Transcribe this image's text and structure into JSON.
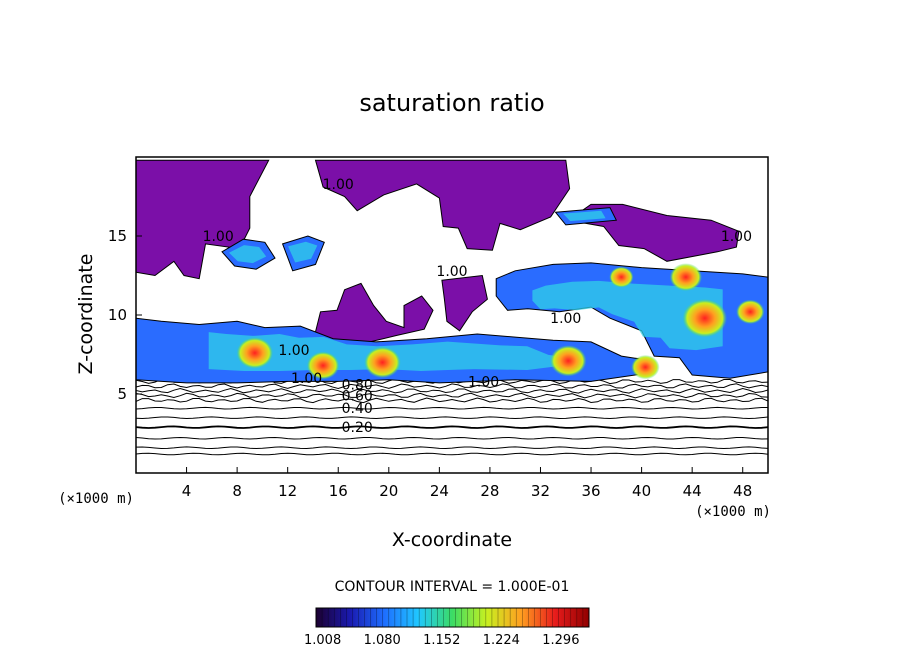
{
  "chart_data": {
    "type": "heatmap",
    "title": "saturation ratio",
    "xlabel": "X-coordinate",
    "ylabel": "Z-coordinate",
    "x_unit": "(×1000 m)",
    "z_unit": "(×1000 m)",
    "xlim": [
      0,
      50
    ],
    "ylim": [
      0,
      20
    ],
    "x_ticks": [
      4,
      8,
      12,
      16,
      20,
      24,
      28,
      32,
      36,
      40,
      44,
      48
    ],
    "y_ticks": [
      5,
      10,
      15
    ],
    "contour_interval_text": "CONTOUR INTERVAL = 1.000E-01",
    "contour_levels": [
      0.1,
      0.2,
      0.3,
      0.4,
      0.5,
      0.6,
      0.7,
      0.8,
      0.9,
      1.0
    ],
    "contour_labels": [
      {
        "text": "0.20",
        "x": 17.5,
        "z": 2.9
      },
      {
        "text": "0.40",
        "x": 17.5,
        "z": 4.1
      },
      {
        "text": "0.60",
        "x": 17.5,
        "z": 4.9
      },
      {
        "text": "0.80",
        "x": 17.5,
        "z": 5.6
      },
      {
        "text": "1.00",
        "x": 13.5,
        "z": 6.0
      },
      {
        "text": "1.00",
        "x": 27.5,
        "z": 5.8
      },
      {
        "text": "1.00",
        "x": 12.5,
        "z": 7.8
      },
      {
        "text": "1.00",
        "x": 25.0,
        "z": 12.8
      },
      {
        "text": "1.00",
        "x": 34.0,
        "z": 9.8
      },
      {
        "text": "1.00",
        "x": 16.0,
        "z": 18.3
      },
      {
        "text": "1.00",
        "x": 6.5,
        "z": 15.0
      },
      {
        "text": "1.00",
        "x": 47.5,
        "z": 15.0
      }
    ],
    "colorbar": {
      "min": 1.0,
      "max": 1.33,
      "labels": [
        "1.008",
        "1.080",
        "1.152",
        "1.224",
        "1.296"
      ],
      "colors": [
        "#1c0030",
        "#1a1ab0",
        "#1e6eff",
        "#20c8ff",
        "#3cdc64",
        "#c8f020",
        "#ffa020",
        "#e81c1c",
        "#900000"
      ]
    },
    "fill_below_one_color": "#ffffff",
    "fill_near_one_color": "#7b0fa8",
    "subsaturated_regions": [
      {
        "name": "upper-left",
        "points": [
          [
            1,
            19.8
          ],
          [
            10.5,
            19.8
          ],
          [
            9,
            17.5
          ],
          [
            9,
            15.5
          ],
          [
            8.2,
            14.2
          ],
          [
            5.5,
            14.5
          ],
          [
            5,
            12.3
          ],
          [
            3.8,
            12.5
          ],
          [
            3,
            13.4
          ],
          [
            1.5,
            12.5
          ],
          [
            0,
            12.7
          ],
          [
            0,
            19.8
          ]
        ]
      },
      {
        "name": "upper-middle",
        "points": [
          [
            14.2,
            19.8
          ],
          [
            34,
            19.8
          ],
          [
            34.3,
            18
          ],
          [
            32.8,
            16.2
          ],
          [
            30.4,
            15.4
          ],
          [
            28.8,
            15.8
          ],
          [
            28.2,
            14.1
          ],
          [
            26.2,
            14.2
          ],
          [
            25.5,
            15.5
          ],
          [
            24.3,
            15.6
          ],
          [
            24,
            17.4
          ],
          [
            22.2,
            18.3
          ],
          [
            19.6,
            17.6
          ],
          [
            17.5,
            16.6
          ],
          [
            16.5,
            17.5
          ],
          [
            14.8,
            18.1
          ],
          [
            14.2,
            19.8
          ]
        ]
      },
      {
        "name": "upper-right",
        "points": [
          [
            34.2,
            16
          ],
          [
            37,
            15.6
          ],
          [
            38.2,
            14.4
          ],
          [
            40.2,
            14.2
          ],
          [
            42,
            13.4
          ],
          [
            46,
            14
          ],
          [
            47.5,
            14.3
          ],
          [
            47.7,
            15.3
          ],
          [
            45.5,
            16
          ],
          [
            42,
            16.3
          ],
          [
            38.5,
            17
          ],
          [
            36,
            17
          ],
          [
            34.2,
            16
          ]
        ]
      },
      {
        "name": "mid-left",
        "points": [
          [
            14,
            8.3
          ],
          [
            14.6,
            10.2
          ],
          [
            15.9,
            10.3
          ],
          [
            16.5,
            11.6
          ],
          [
            17.8,
            12
          ],
          [
            18.8,
            10.6
          ],
          [
            19.8,
            9.6
          ],
          [
            21.2,
            9.2
          ],
          [
            21.2,
            10.6
          ],
          [
            22.6,
            11.2
          ],
          [
            23.5,
            10.3
          ],
          [
            22.8,
            9.1
          ],
          [
            20.6,
            8.7
          ],
          [
            18.5,
            8.3
          ],
          [
            16,
            8.2
          ],
          [
            14,
            8.3
          ]
        ]
      },
      {
        "name": "mid-right",
        "points": [
          [
            40.5,
            8.2
          ],
          [
            43,
            8.8
          ],
          [
            44.2,
            9.8
          ],
          [
            42.5,
            10.2
          ],
          [
            41.5,
            11.8
          ],
          [
            40,
            11.3
          ],
          [
            40.2,
            9.6
          ],
          [
            40.5,
            8.2
          ]
        ]
      },
      {
        "name": "mid-center",
        "points": [
          [
            24.2,
            12.2
          ],
          [
            27.4,
            12.5
          ],
          [
            27.8,
            11
          ],
          [
            26.6,
            10.2
          ],
          [
            25.6,
            9
          ],
          [
            24.6,
            9.6
          ],
          [
            24.4,
            11
          ],
          [
            24.2,
            12.2
          ]
        ]
      }
    ],
    "supersaturated_regions": [
      {
        "name": "upper-right-layer",
        "points": [
          [
            28.5,
            12.3
          ],
          [
            30,
            12.8
          ],
          [
            33,
            13.2
          ],
          [
            36,
            13.3
          ],
          [
            40,
            13
          ],
          [
            44,
            12.8
          ],
          [
            48,
            12.6
          ],
          [
            50,
            12.4
          ],
          [
            50,
            6.4
          ],
          [
            47,
            6
          ],
          [
            44,
            6.2
          ],
          [
            43,
            7.3
          ],
          [
            41,
            7.4
          ],
          [
            40,
            9
          ],
          [
            37.5,
            9.8
          ],
          [
            36,
            10.5
          ],
          [
            33.5,
            10.2
          ],
          [
            31,
            10.4
          ],
          [
            29.4,
            10.3
          ],
          [
            28.5,
            11.2
          ],
          [
            28.5,
            12.3
          ]
        ]
      },
      {
        "name": "main-layer",
        "points": [
          [
            0,
            9.8
          ],
          [
            2,
            9.6
          ],
          [
            5,
            9.4
          ],
          [
            8,
            9.6
          ],
          [
            10.2,
            9.2
          ],
          [
            13,
            9.3
          ],
          [
            15.6,
            8.5
          ],
          [
            19,
            8.3
          ],
          [
            23,
            8.5
          ],
          [
            27,
            8.8
          ],
          [
            30,
            8.6
          ],
          [
            33,
            8.4
          ],
          [
            36,
            8.3
          ],
          [
            38.4,
            7.4
          ],
          [
            40,
            7.2
          ],
          [
            40.3,
            6.3
          ],
          [
            36,
            5.8
          ],
          [
            30,
            5.9
          ],
          [
            27,
            5.8
          ],
          [
            24,
            5.7
          ],
          [
            20,
            5.9
          ],
          [
            16,
            5.8
          ],
          [
            12,
            5.8
          ],
          [
            8,
            5.7
          ],
          [
            4,
            5.7
          ],
          [
            0,
            5.9
          ],
          [
            0,
            9.8
          ]
        ]
      },
      {
        "name": "upper-left-patch",
        "points": [
          [
            6.8,
            14
          ],
          [
            8.5,
            14.8
          ],
          [
            10.2,
            14.6
          ],
          [
            11,
            13.6
          ],
          [
            9.5,
            12.9
          ],
          [
            7.8,
            13.1
          ],
          [
            6.8,
            14
          ]
        ]
      },
      {
        "name": "upper-mid-patch",
        "points": [
          [
            11.6,
            14.5
          ],
          [
            13.6,
            15
          ],
          [
            14.9,
            14.6
          ],
          [
            14.2,
            13.2
          ],
          [
            12.4,
            12.8
          ],
          [
            11.6,
            14.5
          ]
        ]
      },
      {
        "name": "top-right-strip",
        "points": [
          [
            33.2,
            16.5
          ],
          [
            37.5,
            16.8
          ],
          [
            38,
            16
          ],
          [
            34,
            15.7
          ],
          [
            33.2,
            16.5
          ]
        ]
      }
    ],
    "hotspots": [
      {
        "x": 9.4,
        "z": 7.6,
        "r": 0.9
      },
      {
        "x": 14.8,
        "z": 6.8,
        "r": 0.8
      },
      {
        "x": 19.5,
        "z": 7.0,
        "r": 0.9
      },
      {
        "x": 34.2,
        "z": 7.1,
        "r": 0.9
      },
      {
        "x": 40.3,
        "z": 6.7,
        "r": 0.7
      },
      {
        "x": 38.4,
        "z": 12.4,
        "r": 0.6
      },
      {
        "x": 43.5,
        "z": 12.4,
        "r": 0.8
      },
      {
        "x": 45.0,
        "z": 9.8,
        "r": 1.1
      },
      {
        "x": 48.6,
        "z": 10.2,
        "r": 0.7
      }
    ],
    "low_layer_contours_z": [
      1.2,
      1.6,
      2.2,
      2.9,
      3.5,
      4.1,
      4.6,
      4.9,
      5.2,
      5.5,
      5.8
    ]
  }
}
